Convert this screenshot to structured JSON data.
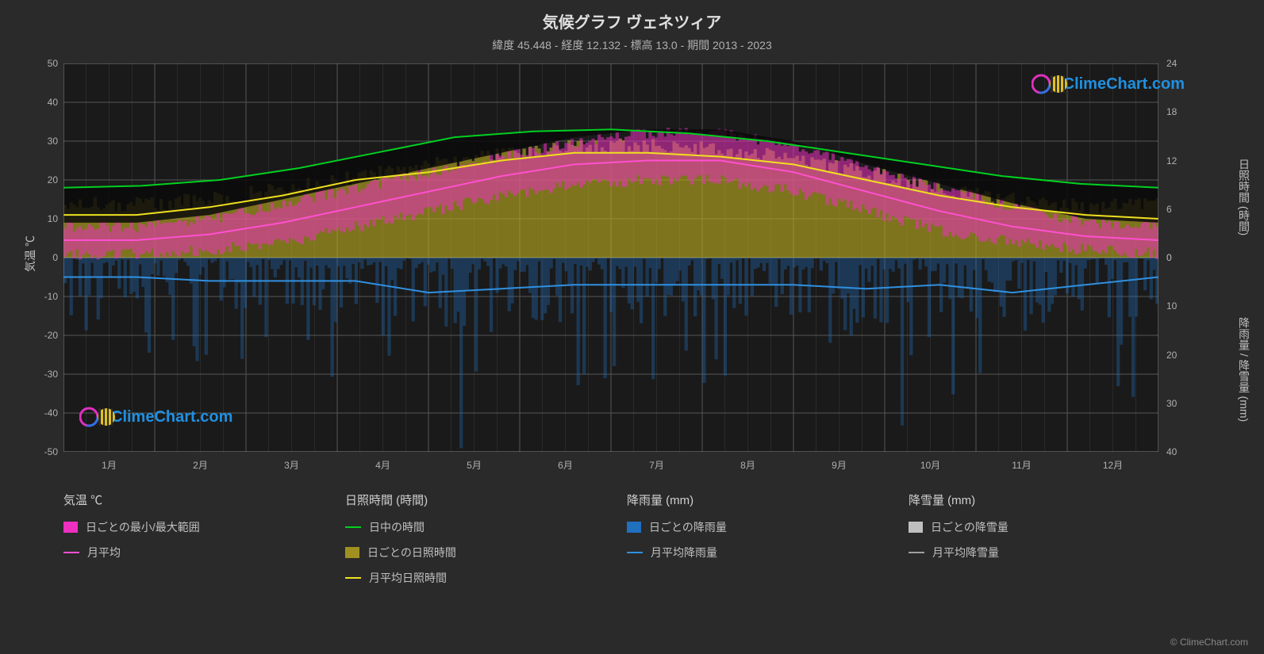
{
  "title": "気候グラフ ヴェネツィア",
  "subtitle": "緯度 45.448 - 経度 12.132 - 標高 13.0 - 期間 2013 - 2023",
  "watermark_text": "ClimeChart.com",
  "footer_credit": "© ClimeChart.com",
  "chart": {
    "background_color": "#2a2a2a",
    "plot_background": "#1e1e1e",
    "grid_color": "#555555",
    "grid_major_color": "#6a6a6a",
    "left_axis": {
      "label": "気温 ℃",
      "min": -50,
      "max": 50,
      "step": 10,
      "ticks": [
        -50,
        -40,
        -30,
        -20,
        -10,
        0,
        10,
        20,
        30,
        40,
        50
      ]
    },
    "right_axis_top": {
      "label": "日照時間 (時間)",
      "min": 0,
      "max": 24,
      "step": 6,
      "ticks": [
        0,
        6,
        12,
        18,
        24
      ]
    },
    "right_axis_bottom": {
      "label": "降雨量 / 降雪量 (mm)",
      "min": 0,
      "max": 40,
      "step": 10,
      "ticks": [
        0,
        10,
        20,
        30,
        40
      ]
    },
    "months": [
      "1月",
      "2月",
      "3月",
      "4月",
      "5月",
      "6月",
      "7月",
      "8月",
      "9月",
      "10月",
      "11月",
      "12月"
    ],
    "series": {
      "daylight_hours": {
        "color": "#00d020",
        "values": [
          18,
          18.5,
          20,
          23,
          27,
          31,
          32.5,
          33,
          32,
          30,
          27,
          24,
          21,
          19,
          18
        ]
      },
      "sunshine_avg": {
        "color": "#f0e020",
        "values": [
          11,
          11,
          13,
          16,
          20,
          22,
          25,
          27,
          27,
          26,
          24,
          20,
          16,
          13,
          11,
          10
        ]
      },
      "temp_avg": {
        "color": "#ff50d0",
        "values": [
          4.5,
          4.5,
          6,
          9,
          13,
          17,
          21,
          24,
          25,
          25,
          22,
          17,
          12,
          8,
          5.5,
          4.5
        ]
      },
      "rain_avg": {
        "color": "#3090e0",
        "values": [
          -5,
          -5,
          -6,
          -6,
          -6,
          -9,
          -8,
          -7,
          -7,
          -7,
          -7,
          -8,
          -7,
          -9,
          -7,
          -5
        ]
      },
      "daily_temp_range": {
        "fill_color": "#ee30c0",
        "opacity": 0.55,
        "min": [
          1,
          1,
          2,
          4,
          8,
          12,
          16,
          19,
          20,
          20,
          17,
          12,
          7,
          4,
          2,
          1
        ],
        "max": [
          8,
          8,
          10,
          14,
          18,
          22,
          26,
          30,
          32,
          32,
          29,
          23,
          18,
          13,
          9,
          8
        ]
      },
      "daily_sunshine_fill": {
        "fill_color": "#c0b020",
        "opacity": 0.6,
        "values": [
          13,
          13,
          14,
          17,
          20,
          23,
          26,
          28,
          28,
          27,
          25,
          21,
          17,
          14,
          12,
          13
        ]
      },
      "daily_rain_bars": {
        "color": "#2070c0",
        "opacity": 0.35
      }
    }
  },
  "legend": {
    "groups": [
      {
        "title": "気温 ℃",
        "items": [
          {
            "type": "swatch",
            "color": "#ee30c0",
            "label": "日ごとの最小/最大範囲"
          },
          {
            "type": "line",
            "color": "#ff50d0",
            "label": "月平均"
          }
        ]
      },
      {
        "title": "日照時間 (時間)",
        "items": [
          {
            "type": "line",
            "color": "#00d020",
            "label": "日中の時間"
          },
          {
            "type": "swatch",
            "color": "#a09020",
            "label": "日ごとの日照時間"
          },
          {
            "type": "line",
            "color": "#f0e020",
            "label": "月平均日照時間"
          }
        ]
      },
      {
        "title": "降雨量 (mm)",
        "items": [
          {
            "type": "swatch",
            "color": "#2070c0",
            "label": "日ごとの降雨量"
          },
          {
            "type": "line",
            "color": "#3090e0",
            "label": "月平均降雨量"
          }
        ]
      },
      {
        "title": "降雪量 (mm)",
        "items": [
          {
            "type": "swatch",
            "color": "#c0c0c0",
            "label": "日ごとの降雪量"
          },
          {
            "type": "line",
            "color": "#a0a0a0",
            "label": "月平均降雪量"
          }
        ]
      }
    ]
  }
}
